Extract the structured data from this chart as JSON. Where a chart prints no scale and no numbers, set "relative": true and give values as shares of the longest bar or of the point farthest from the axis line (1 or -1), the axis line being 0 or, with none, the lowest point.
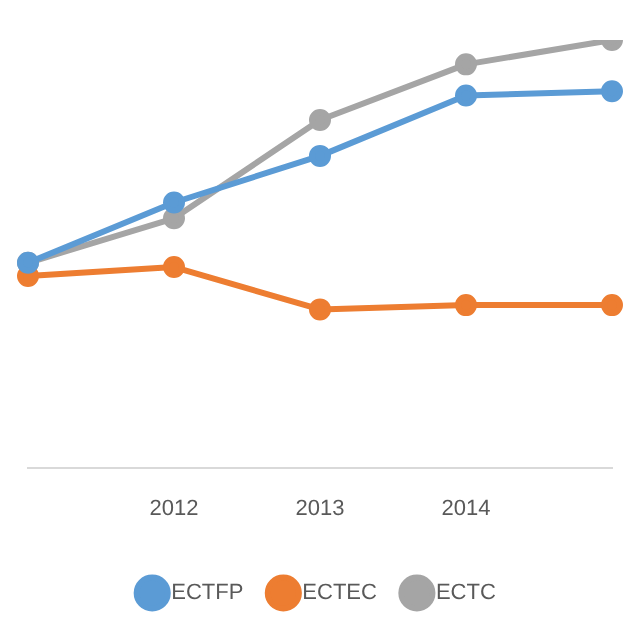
{
  "chart_data": {
    "type": "line",
    "relative": true,
    "categories": [
      null,
      "2012",
      "2013",
      "2014",
      null
    ],
    "series": [
      {
        "name": "ECTFP",
        "color": "#5b9bd5",
        "values": [
          0.479,
          0.62,
          0.729,
          0.87,
          0.88
        ]
      },
      {
        "name": "ECTEC",
        "color": "#ed7d31",
        "values": [
          0.448,
          0.469,
          0.37,
          0.38,
          0.38
        ]
      },
      {
        "name": "ECTC",
        "color": "#a5a5a5",
        "values": [
          0.479,
          0.583,
          0.813,
          0.943,
          1
        ]
      }
    ],
    "marker": "circle",
    "line_style": "solid",
    "legend": "bottom",
    "grid": false
  }
}
